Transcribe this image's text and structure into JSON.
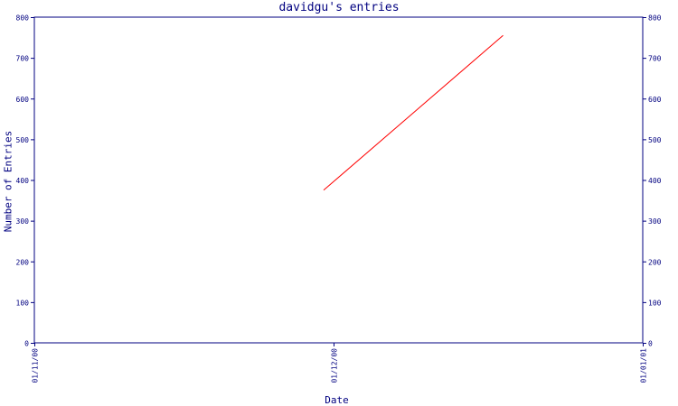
{
  "chart_data": {
    "type": "line",
    "title": "davidgu's entries",
    "xlabel": "Date",
    "ylabel": "Number of Entries",
    "x_ticks": [
      "01/11/00",
      "01/12/00",
      "01/01/01"
    ],
    "y_ticks": [
      "0",
      "100",
      "200",
      "300",
      "400",
      "500",
      "600",
      "700",
      "800"
    ],
    "ylim": [
      0,
      800
    ],
    "xlim": [
      "2000-11-01",
      "2001-01-01"
    ],
    "grid": false,
    "series": [
      {
        "x": [
          "2000-11-30",
          "2000-12-18"
        ],
        "y": [
          375,
          755
        ],
        "color": "#ff0000"
      }
    ],
    "axis_color": "#000080"
  }
}
